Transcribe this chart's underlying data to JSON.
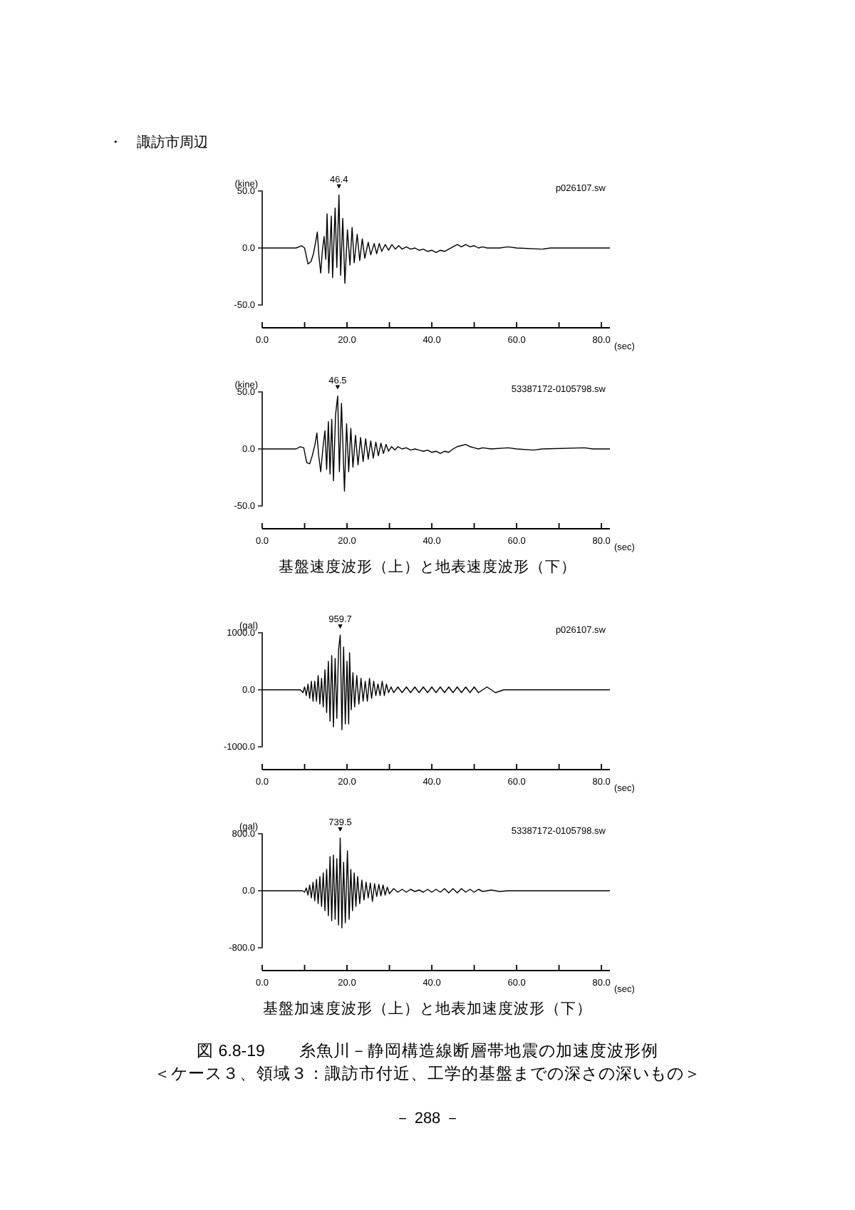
{
  "chart_data": [
    {
      "type": "line",
      "title": "・　諏訪市周辺",
      "xlabel": "(sec)",
      "ylabel": "(kine)",
      "color": "#000000",
      "marker": "none",
      "x": [
        0,
        8,
        9.3,
        10,
        10.8,
        11.5,
        12.1,
        12.6,
        13,
        13.4,
        13.8,
        14.2,
        14.6,
        15,
        15.3,
        15.7,
        16.3,
        16.6,
        17.2,
        17.6,
        18.1,
        18.5,
        19,
        19.5,
        20.1,
        20.7,
        21.2,
        21.7,
        22.4,
        23,
        23.6,
        24.2,
        25,
        25.6,
        26.4,
        27,
        27.6,
        28.2,
        29,
        29.8,
        30.6,
        31.4,
        32.2,
        33,
        34,
        35,
        36,
        37,
        38,
        39,
        40,
        41,
        42,
        43,
        44,
        45,
        46,
        47,
        48,
        49,
        50,
        51,
        52,
        53,
        56,
        58,
        60,
        66,
        68,
        82
      ],
      "values": [
        0,
        0,
        2,
        0,
        -14,
        -12,
        -5,
        5,
        14,
        -8,
        -22,
        -2,
        10,
        -10,
        30,
        -22,
        28,
        -26,
        35,
        -17,
        46.4,
        -24,
        26,
        -31,
        16,
        -15,
        18,
        -13,
        12,
        -11,
        8,
        -9,
        5,
        -6,
        4,
        -5,
        4,
        -3,
        3,
        -2,
        3,
        -1,
        2,
        -1,
        1,
        -1,
        0,
        -2,
        -1,
        -3,
        -2,
        -4,
        -2,
        -3,
        -1,
        1,
        3,
        1,
        3,
        1,
        2,
        0,
        1,
        0,
        0,
        1,
        0,
        -1,
        0,
        0
      ],
      "xlim": [
        0,
        82
      ],
      "xticks": [
        {
          "value": 0,
          "label": "0.0"
        },
        {
          "value": 10,
          "label": null
        },
        {
          "value": 20,
          "label": "20.0"
        },
        {
          "value": 30,
          "label": null
        },
        {
          "value": 40,
          "label": "40.0"
        },
        {
          "value": 50,
          "label": null
        },
        {
          "value": 60,
          "label": "60.0"
        },
        {
          "value": 70,
          "label": null
        },
        {
          "value": 80,
          "label": "80.0"
        }
      ],
      "ylim": [
        -50,
        50
      ],
      "yticks": [
        {
          "value": -50,
          "label": "-50.0"
        },
        {
          "value": 0,
          "label": "0.0"
        },
        {
          "value": 50,
          "label": "50.0"
        }
      ],
      "annotations": [
        {
          "text": "46.4",
          "x": 18.1,
          "y": 46.4
        },
        "p026107.sw"
      ]
    },
    {
      "type": "line",
      "xlabel": "(sec)",
      "ylabel": "(kine)",
      "color": "#000000",
      "marker": "none",
      "x": [
        0,
        8,
        9,
        9.8,
        10.5,
        11.2,
        11.8,
        12.4,
        12.9,
        13.3,
        13.8,
        14.3,
        14.8,
        15.2,
        15.6,
        16,
        16.4,
        16.8,
        17.3,
        17.8,
        18.2,
        18.7,
        19.4,
        19.9,
        20.4,
        20.9,
        21.4,
        22,
        22.6,
        23.2,
        23.8,
        24.4,
        25,
        25.6,
        26.2,
        26.8,
        27.4,
        28,
        28.6,
        29.2,
        29.8,
        30.5,
        31.3,
        32,
        33,
        34,
        35,
        36,
        37,
        38,
        39,
        40,
        41,
        42,
        43,
        44,
        45,
        46,
        47,
        48,
        49,
        50,
        51,
        52,
        54,
        58,
        60,
        64,
        66,
        76,
        78,
        82
      ],
      "values": [
        0,
        0,
        2,
        1,
        -12,
        -13,
        -6,
        3,
        14,
        -5,
        -20,
        0,
        16,
        -18,
        24,
        -22,
        26,
        -28,
        30,
        46.5,
        -20,
        40,
        -37,
        22,
        -20,
        18,
        -16,
        12,
        -14,
        10,
        -11,
        9,
        -9,
        7,
        -8,
        6,
        -6,
        5,
        -4,
        4,
        -2,
        2,
        -1,
        2,
        0,
        1,
        -1,
        0,
        -1,
        -2,
        -1,
        -3,
        -2,
        -4,
        -2,
        -3,
        0,
        2,
        3,
        4,
        2,
        1,
        0,
        1,
        0,
        1,
        0,
        -1,
        0,
        1,
        0,
        0
      ],
      "xlim": [
        0,
        82
      ],
      "xticks": [
        {
          "value": 0,
          "label": "0.0"
        },
        {
          "value": 10,
          "label": null
        },
        {
          "value": 20,
          "label": "20.0"
        },
        {
          "value": 30,
          "label": null
        },
        {
          "value": 40,
          "label": "40.0"
        },
        {
          "value": 50,
          "label": null
        },
        {
          "value": 60,
          "label": "60.0"
        },
        {
          "value": 70,
          "label": null
        },
        {
          "value": 80,
          "label": "80.0"
        }
      ],
      "ylim": [
        -50,
        50
      ],
      "yticks": [
        {
          "value": -50,
          "label": "-50.0"
        },
        {
          "value": 0,
          "label": "0.0"
        },
        {
          "value": 50,
          "label": "50.0"
        }
      ],
      "annotations": [
        {
          "text": "46.5",
          "x": 17.8,
          "y": 46.5
        },
        "53387172-0105798.sw",
        "基盤速度波形（上）と地表速度波形（下）"
      ]
    },
    {
      "type": "line",
      "xlabel": "(sec)",
      "ylabel": "(gal)",
      "color": "#000000",
      "marker": "none",
      "x": [
        0,
        9,
        9.6,
        10,
        10.4,
        10.8,
        11.2,
        11.6,
        12,
        12.4,
        12.8,
        13.2,
        13.6,
        14,
        14.4,
        14.8,
        15.2,
        15.6,
        16,
        16.4,
        16.8,
        17.2,
        17.6,
        18,
        18.4,
        18.8,
        19.2,
        19.6,
        20,
        20.4,
        20.6,
        21,
        21.4,
        21.8,
        22.3,
        22.8,
        23.3,
        23.8,
        24.3,
        24.8,
        25.3,
        25.8,
        26.3,
        26.8,
        27.3,
        27.8,
        28.3,
        28.8,
        29.3,
        29.8,
        30.4,
        31,
        32,
        33,
        34,
        35,
        36,
        37,
        38,
        39,
        40,
        41,
        42,
        43,
        44,
        45,
        46,
        47,
        48,
        49,
        50,
        51,
        53,
        55,
        57,
        59,
        61,
        82
      ],
      "values": [
        0,
        0,
        -50,
        50,
        -100,
        100,
        -150,
        150,
        -200,
        150,
        -200,
        250,
        -250,
        200,
        -300,
        350,
        -400,
        500,
        -550,
        600,
        -650,
        550,
        -500,
        700,
        959.7,
        -700,
        750,
        -600,
        500,
        -600,
        650,
        -350,
        300,
        -300,
        250,
        -250,
        200,
        -200,
        150,
        -200,
        200,
        -150,
        150,
        -100,
        100,
        -100,
        150,
        -100,
        100,
        -50,
        50,
        -50,
        50,
        -50,
        50,
        -50,
        50,
        -50,
        50,
        -50,
        50,
        -50,
        50,
        -50,
        50,
        -50,
        50,
        -50,
        50,
        -50,
        50,
        -50,
        50,
        -50,
        0,
        0,
        0,
        0
      ],
      "xlim": [
        0,
        82
      ],
      "xticks": [
        {
          "value": 0,
          "label": "0.0"
        },
        {
          "value": 10,
          "label": null
        },
        {
          "value": 20,
          "label": "20.0"
        },
        {
          "value": 30,
          "label": null
        },
        {
          "value": 40,
          "label": "40.0"
        },
        {
          "value": 50,
          "label": null
        },
        {
          "value": 60,
          "label": "60.0"
        },
        {
          "value": 70,
          "label": null
        },
        {
          "value": 80,
          "label": "80.0"
        }
      ],
      "ylim": [
        -1000,
        1000
      ],
      "yticks": [
        {
          "value": -1000,
          "label": "-1000.0"
        },
        {
          "value": 0,
          "label": "0.0"
        },
        {
          "value": 1000,
          "label": "1000.0"
        }
      ],
      "annotations": [
        {
          "text": "959.7",
          "x": 18.4,
          "y": 959.7
        },
        "p026107.sw"
      ]
    },
    {
      "type": "line",
      "xlabel": "(sec)",
      "ylabel": "(gal)",
      "color": "#000000",
      "marker": "none",
      "x": [
        0,
        9.5,
        10,
        10.4,
        10.8,
        11.2,
        11.6,
        12,
        12.4,
        12.8,
        13.2,
        13.6,
        14,
        14.4,
        14.8,
        15.2,
        15.6,
        16,
        16.4,
        16.8,
        17.2,
        17.6,
        18,
        18.4,
        18.8,
        19.2,
        19.6,
        20.1,
        20.5,
        20.9,
        21.3,
        21.7,
        22.1,
        22.5,
        23,
        23.5,
        24,
        24.5,
        25,
        25.5,
        26,
        26.5,
        27,
        27.5,
        28,
        28.5,
        29,
        29.5,
        30,
        31,
        32,
        33,
        34,
        35,
        36,
        37,
        38,
        39,
        40,
        41,
        42,
        43,
        44,
        45,
        46,
        47,
        48,
        49,
        50,
        51,
        52,
        54,
        56,
        58,
        82
      ],
      "values": [
        0,
        0,
        -20,
        40,
        -60,
        80,
        -100,
        120,
        -140,
        160,
        -180,
        200,
        -220,
        250,
        -280,
        300,
        -350,
        480,
        -420,
        500,
        -400,
        450,
        -480,
        739.5,
        -520,
        400,
        -450,
        560,
        -400,
        300,
        -280,
        250,
        -220,
        200,
        -180,
        150,
        -130,
        120,
        -100,
        110,
        -150,
        100,
        -80,
        90,
        -70,
        80,
        -60,
        50,
        -40,
        30,
        -20,
        20,
        -20,
        20,
        -10,
        10,
        -20,
        20,
        -20,
        20,
        -20,
        30,
        -30,
        30,
        -30,
        30,
        -20,
        20,
        -20,
        20,
        -10,
        10,
        -10,
        0,
        0
      ],
      "xlim": [
        0,
        82
      ],
      "xticks": [
        {
          "value": 0,
          "label": "0.0"
        },
        {
          "value": 10,
          "label": null
        },
        {
          "value": 20,
          "label": "20.0"
        },
        {
          "value": 30,
          "label": null
        },
        {
          "value": 40,
          "label": "40.0"
        },
        {
          "value": 50,
          "label": null
        },
        {
          "value": 60,
          "label": "60.0"
        },
        {
          "value": 70,
          "label": null
        },
        {
          "value": 80,
          "label": "80.0"
        }
      ],
      "ylim": [
        -800,
        800
      ],
      "yticks": [
        {
          "value": -800,
          "label": "-800.0"
        },
        {
          "value": 0,
          "label": "0.0"
        },
        {
          "value": 800,
          "label": "800.0"
        }
      ],
      "annotations": [
        {
          "text": "739.5",
          "x": 18.4,
          "y": 739.5
        },
        "53387172-0105798.sw",
        "基盤加速度波形（上）と地表加速度波形（下）",
        "図 6.8-19　　糸魚川－静岡構造線断層帯地震の加速度波形例",
        "＜ケース３、領域３：諏訪市付近、工学的基盤までの深さの深いもの＞",
        "－ 288 －"
      ]
    }
  ]
}
